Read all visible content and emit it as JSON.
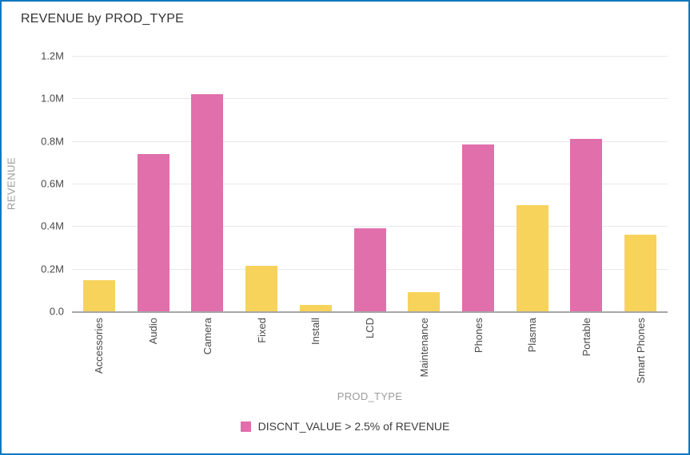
{
  "header": {
    "title": "REVENUE by PROD_TYPE"
  },
  "colors": {
    "highlight": "#e06fab",
    "normal": "#f7d35c",
    "card_border": "#1178bd",
    "gridline": "#e8e8f0",
    "axis_line": "#a6a6a6",
    "title_text": "#333333",
    "tick_text": "#4a4a4a",
    "axis_title_text": "#9b9b9b"
  },
  "chart_data": {
    "type": "bar",
    "title": "REVENUE by PROD_TYPE",
    "xlabel": "PROD_TYPE",
    "ylabel": "REVENUE",
    "ylim": [
      0,
      1200000
    ],
    "grid": true,
    "legend_position": "bottom",
    "y_ticks": [
      {
        "label": "1.2M",
        "value": 1200000
      },
      {
        "label": "1.0M",
        "value": 1000000
      },
      {
        "label": "0.8M",
        "value": 800000
      },
      {
        "label": "0.6M",
        "value": 600000
      },
      {
        "label": "0.4M",
        "value": 400000
      },
      {
        "label": "0.2M",
        "value": 200000
      },
      {
        "label": "0.0",
        "value": 0
      }
    ],
    "categories": [
      "Accessories",
      "Audio",
      "Camera",
      "Fixed",
      "Install",
      "LCD",
      "Maintenance",
      "Phones",
      "Plasma",
      "Portable",
      "Smart Phones"
    ],
    "values": [
      145000,
      740000,
      1020000,
      215000,
      30000,
      390000,
      90000,
      785000,
      500000,
      810000,
      360000
    ],
    "highlighted": [
      false,
      true,
      true,
      false,
      false,
      true,
      false,
      true,
      false,
      true,
      false
    ],
    "legend": [
      {
        "label": "DISCNT_VALUE > 2.5% of REVENUE",
        "color": "#e06fab"
      }
    ]
  }
}
